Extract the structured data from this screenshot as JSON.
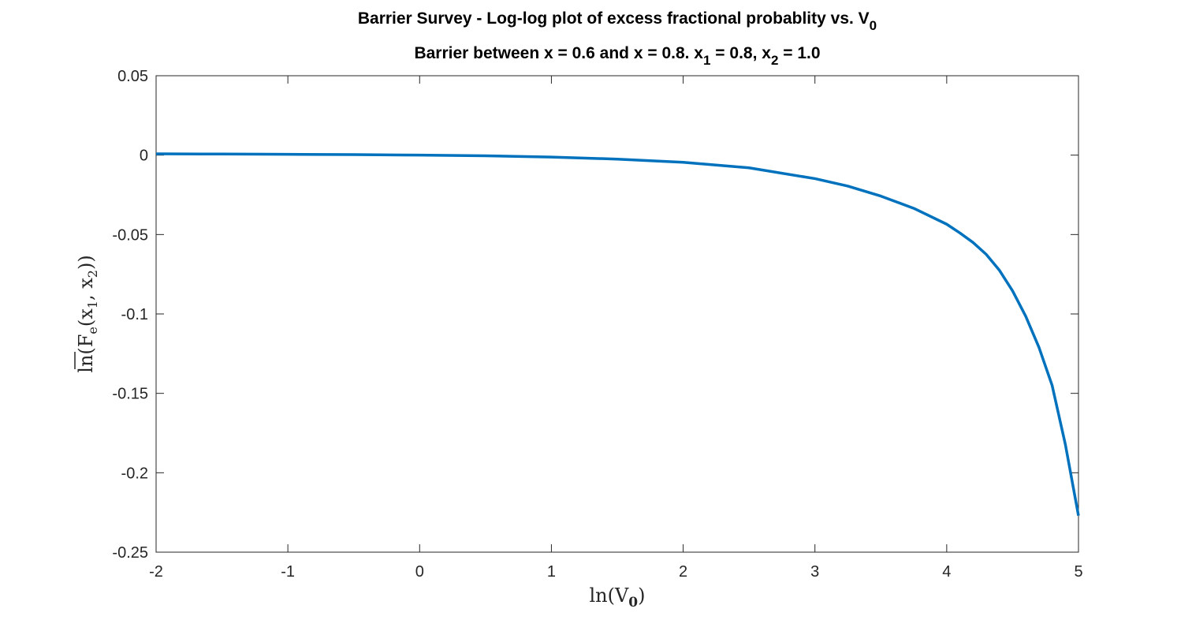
{
  "colors": {
    "series": "#0072BD",
    "axes": "#262626",
    "background": "#ffffff"
  },
  "chart_data": {
    "type": "line",
    "title": {
      "prefix": "Barrier Survey - Log-log plot of excess fractional probablity vs. V",
      "suffix_sub": "0"
    },
    "subtitle": {
      "part1": "Barrier between x = 0.6 and x = 0.8. x",
      "sub1": "1",
      "part2": " = 0.8, x",
      "sub2": "2",
      "part3": " = 1.0"
    },
    "xlabel": {
      "main": "ln(V",
      "sub": "0",
      "close": ")"
    },
    "ylabel": {
      "main": "ln(F",
      "sub_e": "e",
      "mid": "(x",
      "sub1": "1",
      "sep": ", x",
      "sub2": "2",
      "close": "))"
    },
    "xlim": [
      -2,
      5
    ],
    "ylim": [
      -0.25,
      0.05
    ],
    "xticks": [
      -2,
      -1,
      0,
      1,
      2,
      3,
      4,
      5
    ],
    "xtick_labels": [
      "-2",
      "-1",
      "0",
      "1",
      "2",
      "3",
      "4",
      "5"
    ],
    "yticks": [
      -0.25,
      -0.2,
      -0.15,
      -0.1,
      -0.05,
      0,
      0.05
    ],
    "ytick_labels": [
      "-0.25",
      "-0.2",
      "-0.15",
      "-0.1",
      "-0.05",
      "0",
      "0.05"
    ],
    "grid": false,
    "box": true,
    "series": [
      {
        "x": [
          -2.0,
          -1.5,
          -1.0,
          -0.5,
          0.0,
          0.5,
          1.0,
          1.5,
          2.0,
          2.5,
          3.0,
          3.25,
          3.5,
          3.75,
          4.0,
          4.1,
          4.2,
          4.3,
          4.4,
          4.5,
          4.6,
          4.7,
          4.8,
          4.9,
          5.0
        ],
        "y": [
          0.0008,
          0.0007,
          0.0005,
          0.0003,
          0.0,
          -0.0004,
          -0.0012,
          -0.0025,
          -0.0045,
          -0.008,
          -0.0148,
          -0.0195,
          -0.0258,
          -0.0335,
          -0.0435,
          -0.049,
          -0.055,
          -0.0625,
          -0.0725,
          -0.0855,
          -0.1015,
          -0.121,
          -0.145,
          -0.182,
          -0.227
        ]
      }
    ]
  }
}
